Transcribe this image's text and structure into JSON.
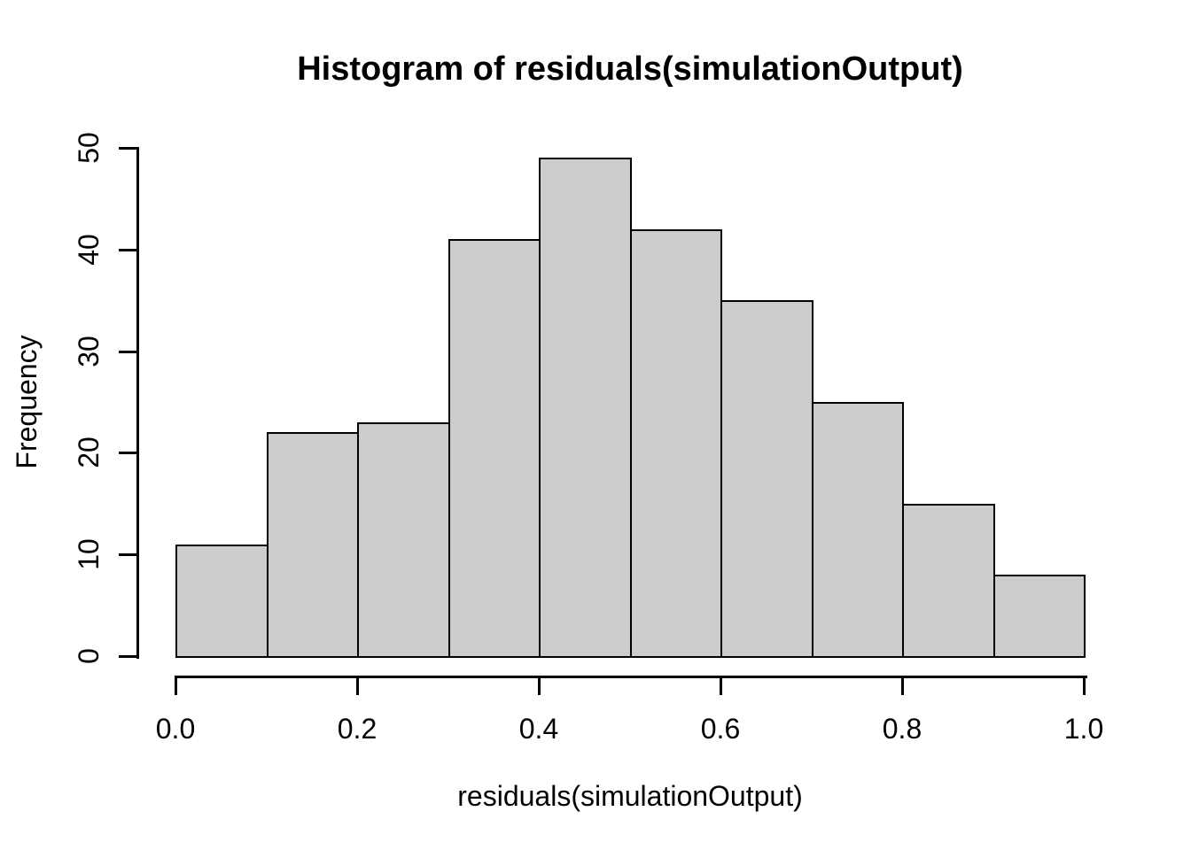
{
  "chart_data": {
    "type": "bar",
    "kind": "histogram",
    "title": "Histogram of residuals(simulationOutput)",
    "xlabel": "residuals(simulationOutput)",
    "ylabel": "Frequency",
    "bin_edges": [
      0.0,
      0.1,
      0.2,
      0.3,
      0.4,
      0.5,
      0.6,
      0.7,
      0.8,
      0.9,
      1.0
    ],
    "values": [
      11,
      22,
      23,
      41,
      49,
      42,
      35,
      25,
      15,
      8
    ],
    "x_tick_values": [
      0.0,
      0.2,
      0.4,
      0.6,
      0.8,
      1.0
    ],
    "x_tick_labels": [
      "0.0",
      "0.2",
      "0.4",
      "0.6",
      "0.8",
      "1.0"
    ],
    "y_tick_values": [
      0,
      10,
      20,
      30,
      40,
      50
    ],
    "y_tick_labels": [
      "0",
      "10",
      "20",
      "30",
      "40",
      "50"
    ],
    "xlim": [
      0.0,
      1.0
    ],
    "ylim": [
      0,
      50
    ],
    "grid": false,
    "legend": "none",
    "colors": {
      "bar_fill": "#CCCCCC",
      "bar_border": "#000000",
      "axis": "#000000",
      "text": "#000000",
      "background": "#FFFFFF"
    }
  }
}
